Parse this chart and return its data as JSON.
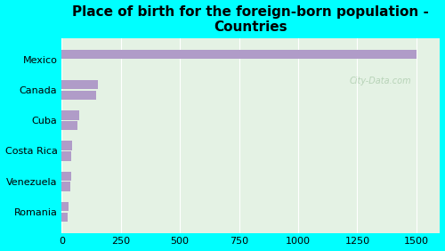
{
  "title": "Place of birth for the foreign-born population -\nCountries",
  "categories": [
    "Mexico",
    "Canada",
    "Cuba",
    "Costa Rica",
    "Venezuela",
    "Romania"
  ],
  "values_top": [
    1500,
    155,
    75,
    45,
    40,
    30
  ],
  "values_bottom": [
    0,
    145,
    65,
    42,
    37,
    27
  ],
  "bar_color": "#b09cc8",
  "background_color": "#00ffff",
  "plot_bg_color": "#e4f2e4",
  "xlim": [
    0,
    1600
  ],
  "xticks": [
    0,
    250,
    500,
    750,
    1000,
    1250,
    1500
  ],
  "title_fontsize": 11,
  "tick_fontsize": 8,
  "watermark": "City-Data.com"
}
